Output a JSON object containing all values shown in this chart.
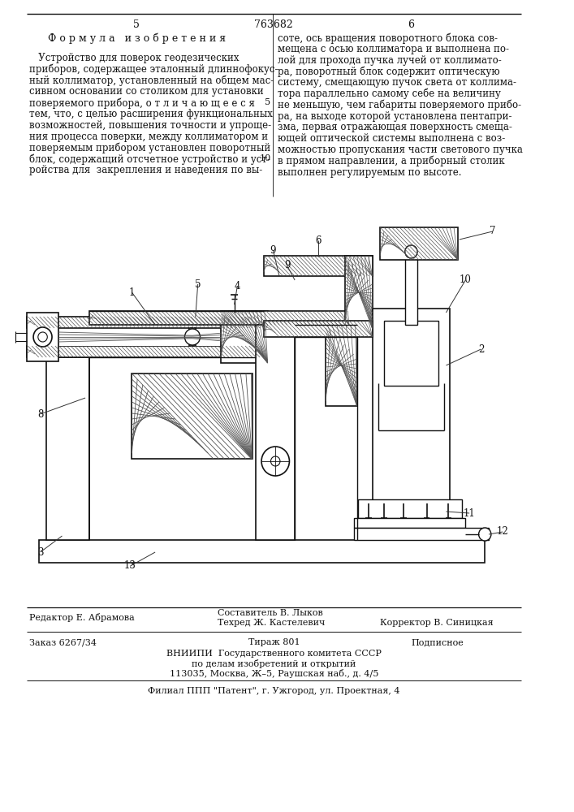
{
  "page_number_left": "5",
  "page_number_center": "763682",
  "page_number_right": "6",
  "formula_title": "Ф о р м у л а   и з о б р е т е н и я",
  "left_col": [
    "   Устройство для поверок геодезических",
    "приборов, содержащее эталонный длиннофокус-",
    "ный коллиматор, установленный на общем мас-",
    "сивном основании со столиком для установки",
    "поверяемого прибора, о т л и ч а ю щ е е с я",
    "тем, что, с целью расширения функциональных",
    "возможностей, повышения точности и упроще-",
    "ния процесса поверки, между коллиматором и",
    "поверяемым прибором установлен поворотный",
    "блок, содержащий отсчетное устройство и уст-",
    "ройства для  закрепления и наведения по вы-"
  ],
  "right_col": [
    "соте, ось вращения поворотного блока сов-",
    "мещена с осью коллиматора и выполнена по-",
    "лой для прохода пучка лучей от коллимато-",
    "ра, поворотный блок содержит оптическую",
    "систему, смещающую пучок света от коллима-",
    "тора параллельно самому себе на величину",
    "не меньшую, чем габариты поверяемого прибо-",
    "ра, на выходе которой установлена пентапри-",
    "зма, первая отражающая поверхность смеща-",
    "ющей оптической системы выполнена с воз-",
    "можностью пропускания части светового пучка",
    "в прямом направлении, а приборный столик",
    "выполнен регулируемым по высоте."
  ],
  "editor_line": "Редактор Е. Абрамова",
  "composer_line1": "Составитель В. Лыков",
  "composer_line2": "Техред Ж. Кастелевич",
  "corrector_line": "Корректор В. Синицкая",
  "order_line": "Заказ 6267/34",
  "circulation_line": "Тираж 801",
  "subscription_line": "Подписное",
  "org_line1": "ВНИИПИ  Государственного комитета СССР",
  "org_line2": "по делам изобретений и открытий",
  "org_line3": "113035, Москва, Ж–5, Раушская наб., д. 4/5",
  "filial_line": "Филиал ППП \"Патент\", г. Ужгород, ул. Проектная, 4",
  "bg_color": "#ffffff",
  "text_color": "#111111",
  "line_color": "#111111"
}
